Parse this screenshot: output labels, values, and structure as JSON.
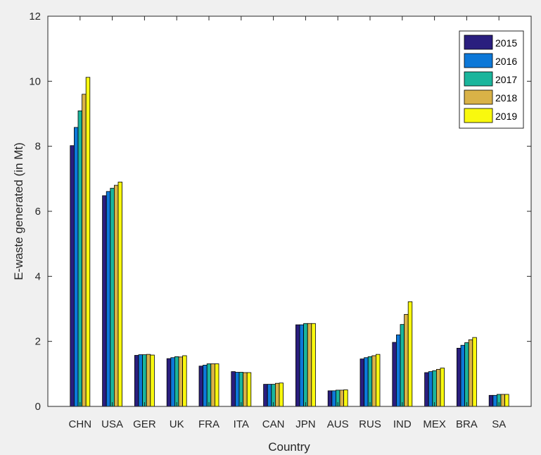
{
  "chart_data": {
    "type": "bar",
    "title": "",
    "xlabel": "Country",
    "ylabel": "E-waste generated (in Mt)",
    "ylim": [
      0,
      12
    ],
    "yticks": [
      0,
      2,
      4,
      6,
      8,
      10,
      12
    ],
    "grid": false,
    "legend_position": "top-right",
    "categories": [
      "CHN",
      "USA",
      "GER",
      "UK",
      "FRA",
      "ITA",
      "CAN",
      "JPN",
      "AUS",
      "RUS",
      "IND",
      "MEX",
      "BRA",
      "SA"
    ],
    "series": [
      {
        "name": "2015",
        "color": "#2a1e7e",
        "values": [
          8.02,
          6.48,
          1.57,
          1.47,
          1.24,
          1.07,
          0.68,
          2.51,
          0.48,
          1.46,
          1.97,
          1.04,
          1.79,
          0.34
        ]
      },
      {
        "name": "2016",
        "color": "#0d78d8",
        "values": [
          8.58,
          6.61,
          1.59,
          1.5,
          1.27,
          1.05,
          0.68,
          2.51,
          0.48,
          1.5,
          2.2,
          1.07,
          1.88,
          0.34
        ]
      },
      {
        "name": "2017",
        "color": "#1ab59c",
        "values": [
          9.09,
          6.71,
          1.59,
          1.53,
          1.31,
          1.05,
          0.68,
          2.55,
          0.5,
          1.53,
          2.52,
          1.1,
          1.96,
          0.37
        ]
      },
      {
        "name": "2018",
        "color": "#d9b247",
        "values": [
          9.6,
          6.8,
          1.6,
          1.52,
          1.31,
          1.04,
          0.71,
          2.55,
          0.5,
          1.56,
          2.83,
          1.14,
          2.05,
          0.37
        ]
      },
      {
        "name": "2019",
        "color": "#f9f90e",
        "values": [
          10.12,
          6.9,
          1.58,
          1.56,
          1.31,
          1.04,
          0.72,
          2.55,
          0.51,
          1.6,
          3.22,
          1.18,
          2.12,
          0.37
        ]
      }
    ]
  }
}
